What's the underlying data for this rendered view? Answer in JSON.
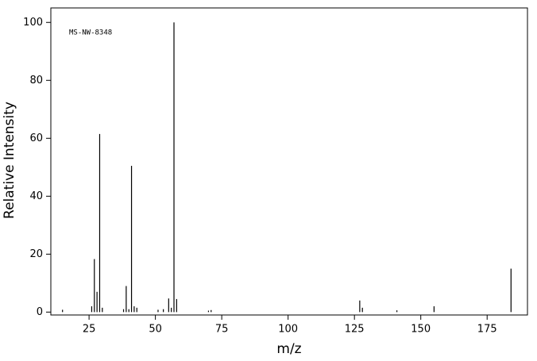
{
  "chart_data": {
    "type": "stem",
    "annotation": "MS-NW-8348",
    "xlabel": "m/z",
    "ylabel": "Relative Intensity",
    "x": [
      15,
      26,
      27,
      28,
      29,
      30,
      38,
      39,
      40,
      41,
      42,
      43,
      51,
      53,
      55,
      56,
      57,
      58,
      70,
      71,
      127,
      128,
      141,
      155,
      184
    ],
    "values": [
      0.8,
      2,
      18.3,
      7,
      61.5,
      1.5,
      1,
      9,
      1,
      50.5,
      2,
      1.5,
      0.8,
      1,
      4.7,
      1.5,
      100,
      4.5,
      0.5,
      0.7,
      4,
      1.5,
      0.6,
      2,
      15
    ],
    "color": "#000000",
    "xlim": [
      10.6,
      190.2
    ],
    "ylim": [
      -1,
      105
    ],
    "xticks": [
      25,
      50,
      75,
      100,
      125,
      150,
      175
    ],
    "yticks": [
      0,
      20,
      40,
      60,
      80,
      100
    ]
  }
}
